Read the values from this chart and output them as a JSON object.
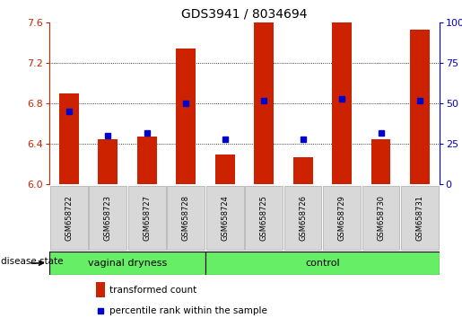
{
  "title": "GDS3941 / 8034694",
  "samples": [
    "GSM658722",
    "GSM658723",
    "GSM658727",
    "GSM658728",
    "GSM658724",
    "GSM658725",
    "GSM658726",
    "GSM658729",
    "GSM658730",
    "GSM658731"
  ],
  "transformed_count": [
    6.9,
    6.45,
    6.47,
    7.34,
    6.3,
    7.6,
    6.27,
    7.6,
    6.45,
    7.53
  ],
  "percentile_rank": [
    45,
    30,
    32,
    50,
    28,
    52,
    28,
    53,
    32,
    52
  ],
  "group_labels": [
    "vaginal dryness",
    "control"
  ],
  "group_counts": [
    4,
    6
  ],
  "ylim": [
    6.0,
    7.6
  ],
  "yticks": [
    6.0,
    6.4,
    6.8,
    7.2,
    7.6
  ],
  "right_yticks": [
    0,
    25,
    50,
    75,
    100
  ],
  "bar_color": "#CC2200",
  "dot_color": "#0000CC",
  "green_color": "#66EE66",
  "gray_box_color": "#D8D8D8",
  "label_fontsize": 8,
  "title_fontsize": 10,
  "legend_red_label": "transformed count",
  "legend_blue_label": "percentile rank within the sample",
  "disease_state_label": "disease state"
}
